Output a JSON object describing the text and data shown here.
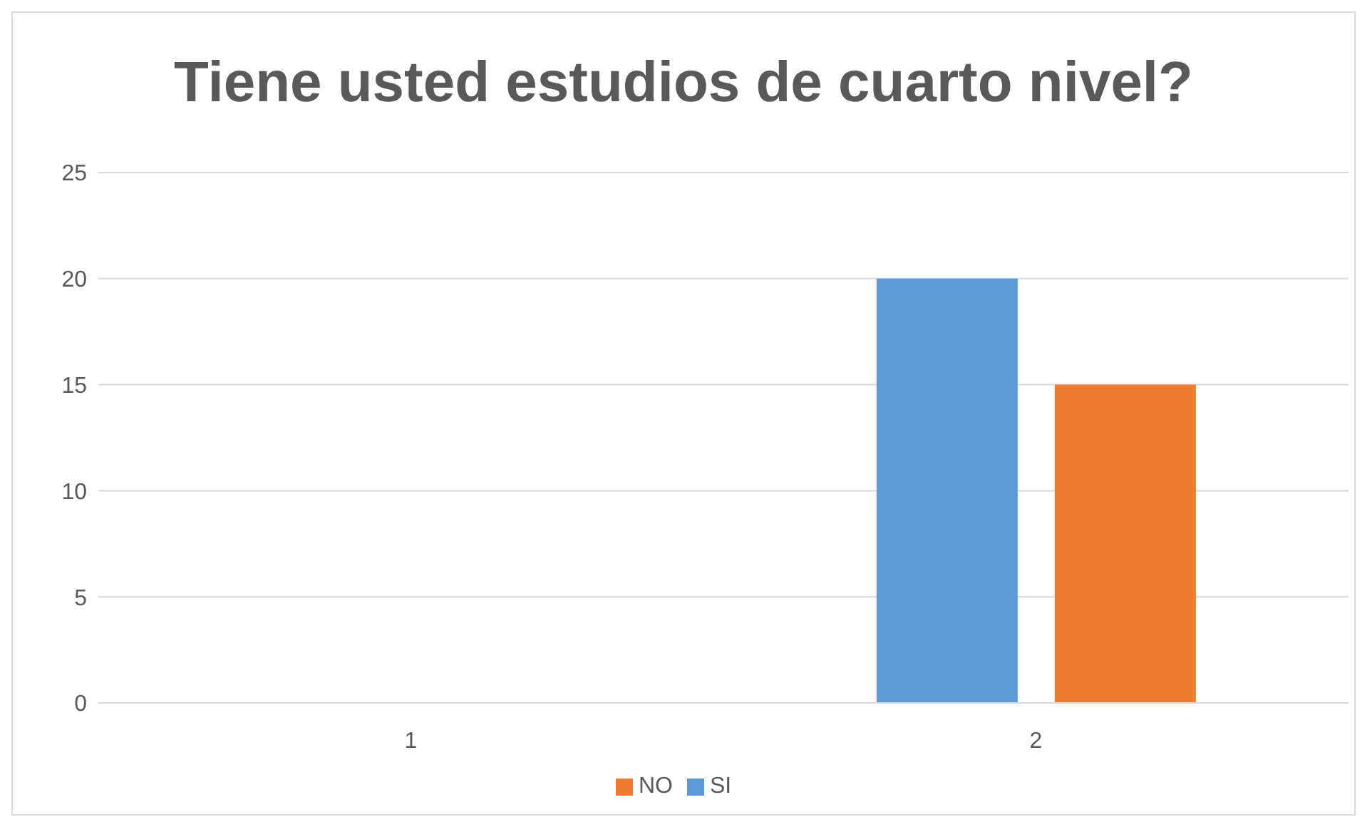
{
  "chart_data": {
    "type": "bar",
    "title": "Tiene usted estudios de cuarto nivel?",
    "categories": [
      "1",
      "2"
    ],
    "series": [
      {
        "name": "SI",
        "color": "#5b9bd5",
        "values": [
          null,
          20
        ]
      },
      {
        "name": "NO",
        "color": "#ed7d31",
        "values": [
          null,
          15
        ]
      }
    ],
    "ylim": [
      0,
      25
    ],
    "yticks": [
      0,
      5,
      10,
      15,
      20,
      25
    ],
    "grid": "y",
    "legend": "bottom"
  }
}
